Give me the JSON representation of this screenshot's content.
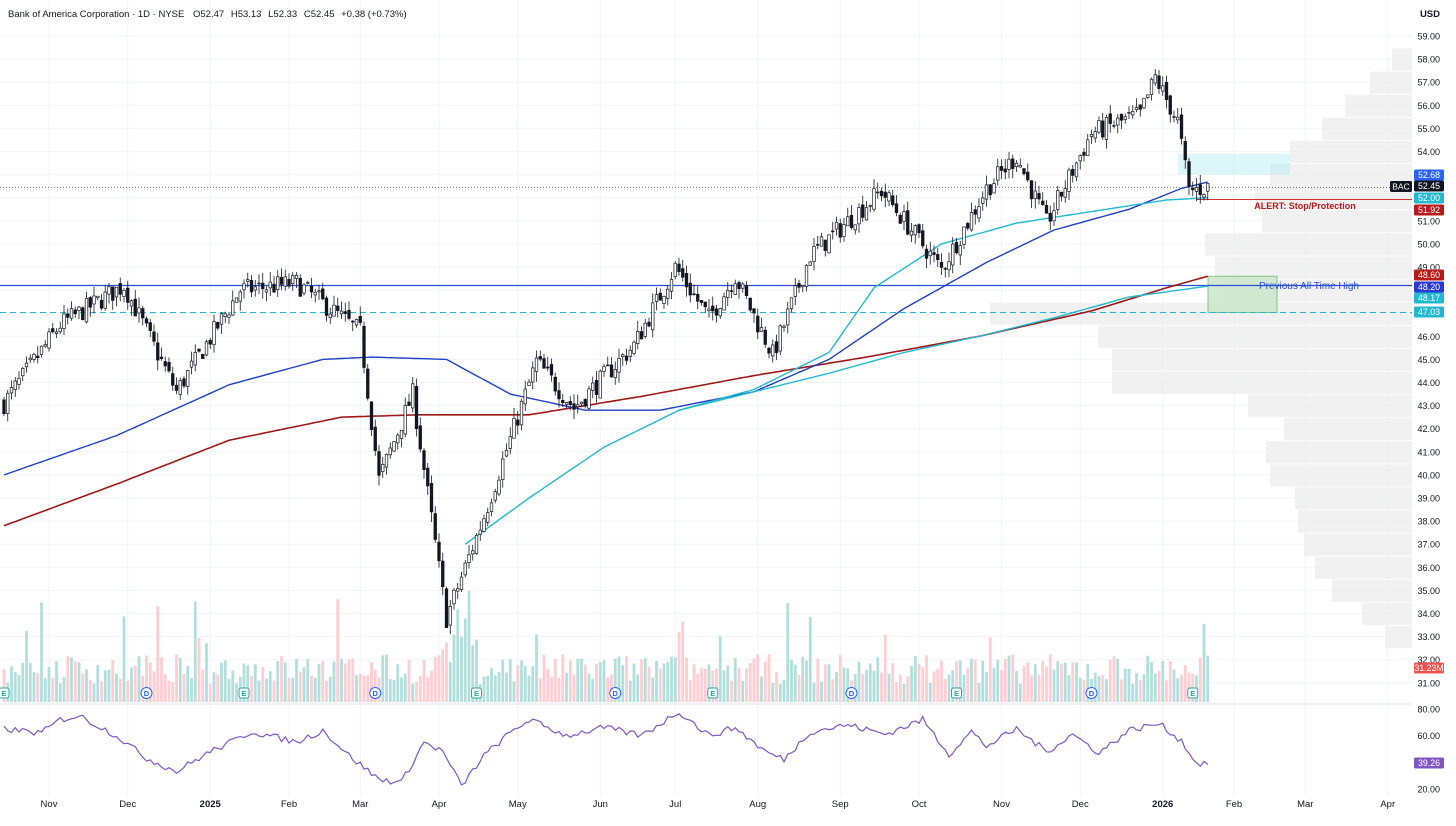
{
  "header": {
    "instrument": "Bank of America Corporation · 1D · NYSE",
    "open_label": "O",
    "open": "52.47",
    "high_label": "H",
    "high": "53.13",
    "low_label": "L",
    "low": "52.33",
    "close_label": "C",
    "close": "52.45",
    "change": "+0.38 (+0.73%)"
  },
  "axis": {
    "currency": "USD"
  },
  "symbol": "BAC",
  "colors": {
    "up": "#26a69a",
    "down": "#ef5350",
    "candle": "#131722",
    "sma50": "#1e40c8",
    "sma100": "#22b8cf",
    "sma200": "#a01818",
    "rsi": "#7e57c2",
    "ath": "#2a4fd6",
    "alert": "#d32f2f"
  },
  "price_scale": {
    "ticks": [
      "59.00",
      "58.00",
      "57.00",
      "56.00",
      "55.00",
      "54.00",
      "53.00",
      "52.00",
      "51.00",
      "50.00",
      "49.00",
      "48.00",
      "47.00",
      "46.00",
      "45.00",
      "44.00",
      "43.00",
      "42.00",
      "41.00",
      "40.00",
      "39.00",
      "38.00",
      "37.00",
      "36.00",
      "35.00",
      "34.00",
      "33.00",
      "32.00",
      "31.00"
    ],
    "badges": [
      {
        "label": "52.68",
        "value": 52.68,
        "color": "#2962ff"
      },
      {
        "label": "52.45",
        "value": 52.45,
        "color": "#131722"
      },
      {
        "label": "52.00",
        "value": 52.0,
        "color": "#22b8cf"
      },
      {
        "label": "51.92",
        "value": 51.92,
        "color": "#b71c1c"
      },
      {
        "label": "48.60",
        "value": 48.6,
        "color": "#b71c1c"
      },
      {
        "label": "48.20",
        "value": 48.2,
        "color": "#2a3ad6"
      },
      {
        "label": "48.17",
        "value": 48.17,
        "color": "#22b8cf"
      },
      {
        "label": "47.03",
        "value": 47.03,
        "color": "#22b8cf"
      }
    ],
    "volume_badge": "31.23M"
  },
  "rsi_scale": {
    "ticks": [
      "80.00",
      "60.00",
      "40.00",
      "20.00"
    ],
    "badge": "39.26"
  },
  "time_axis": {
    "labels": [
      {
        "t": "Nov",
        "i": 12
      },
      {
        "t": "Dec",
        "i": 33
      },
      {
        "t": "2025",
        "i": 55,
        "bold": true
      },
      {
        "t": "Feb",
        "i": 76
      },
      {
        "t": "Mar",
        "i": 95
      },
      {
        "t": "Apr",
        "i": 116
      },
      {
        "t": "May",
        "i": 137
      },
      {
        "t": "Jun",
        "i": 159
      },
      {
        "t": "Jul",
        "i": 179
      },
      {
        "t": "Aug",
        "i": 201
      },
      {
        "t": "Sep",
        "i": 223
      },
      {
        "t": "Oct",
        "i": 244
      },
      {
        "t": "Nov",
        "i": 266
      },
      {
        "t": "Dec",
        "i": 287
      },
      {
        "t": "2026",
        "i": 309,
        "bold": true
      },
      {
        "t": "Feb",
        "i": 328
      },
      {
        "t": "Mar",
        "i": 347
      },
      {
        "t": "Apr",
        "i": 369
      }
    ]
  },
  "event_markers": [
    {
      "t": "E",
      "i": 0
    },
    {
      "t": "D",
      "i": 38
    },
    {
      "t": "E",
      "i": 64
    },
    {
      "t": "D",
      "i": 99
    },
    {
      "t": "E",
      "i": 126
    },
    {
      "t": "D",
      "i": 163
    },
    {
      "t": "E",
      "i": 189
    },
    {
      "t": "D",
      "i": 226
    },
    {
      "t": "E",
      "i": 254
    },
    {
      "t": "D",
      "i": 290
    },
    {
      "t": "E",
      "i": 317
    }
  ],
  "annotations": {
    "ath_label": "Previous All Time High",
    "alert_label": "ALERT: Stop/Protection"
  },
  "chart_data": {
    "type": "candlestick",
    "period": "1D",
    "x_range": [
      "Oct 2024",
      "Apr 2026"
    ],
    "y_range": [
      31,
      59.5
    ],
    "rsi_range": [
      20,
      80
    ],
    "key_points": [
      {
        "i": 0,
        "close": 43.1
      },
      {
        "i": 15,
        "close": 46.5
      },
      {
        "i": 32,
        "close": 48.2
      },
      {
        "i": 46,
        "close": 43.6
      },
      {
        "i": 63,
        "close": 48.0
      },
      {
        "i": 78,
        "close": 48.3
      },
      {
        "i": 95,
        "close": 46.2
      },
      {
        "i": 100,
        "close": 39.8
      },
      {
        "i": 109,
        "close": 43.5
      },
      {
        "i": 118,
        "close": 33.8
      },
      {
        "i": 128,
        "close": 38.2
      },
      {
        "i": 142,
        "close": 44.9
      },
      {
        "i": 152,
        "close": 42.9
      },
      {
        "i": 168,
        "close": 45.6
      },
      {
        "i": 179,
        "close": 49.0
      },
      {
        "i": 188,
        "close": 46.8
      },
      {
        "i": 195,
        "close": 48.6
      },
      {
        "i": 205,
        "close": 45.2
      },
      {
        "i": 215,
        "close": 49.5
      },
      {
        "i": 234,
        "close": 52.3
      },
      {
        "i": 250,
        "close": 48.9
      },
      {
        "i": 262,
        "close": 52.4
      },
      {
        "i": 270,
        "close": 53.8
      },
      {
        "i": 278,
        "close": 50.9
      },
      {
        "i": 290,
        "close": 54.8
      },
      {
        "i": 303,
        "close": 55.6
      },
      {
        "i": 307,
        "close": 57.2
      },
      {
        "i": 313,
        "close": 55.3
      },
      {
        "i": 316,
        "close": 52.3
      },
      {
        "i": 321,
        "close": 52.45
      }
    ],
    "sma_50": [
      {
        "i": 0,
        "v": 40.0
      },
      {
        "i": 30,
        "v": 41.7
      },
      {
        "i": 60,
        "v": 43.9
      },
      {
        "i": 85,
        "v": 45.0
      },
      {
        "i": 98,
        "v": 45.1
      },
      {
        "i": 118,
        "v": 45.0
      },
      {
        "i": 135,
        "v": 43.5
      },
      {
        "i": 155,
        "v": 42.8
      },
      {
        "i": 175,
        "v": 42.8
      },
      {
        "i": 200,
        "v": 43.6
      },
      {
        "i": 220,
        "v": 45.0
      },
      {
        "i": 240,
        "v": 47.2
      },
      {
        "i": 262,
        "v": 49.2
      },
      {
        "i": 280,
        "v": 50.6
      },
      {
        "i": 300,
        "v": 51.5
      },
      {
        "i": 314,
        "v": 52.4
      },
      {
        "i": 321,
        "v": 52.68
      }
    ],
    "sma_100": [
      {
        "i": 123,
        "v": 37.0
      },
      {
        "i": 140,
        "v": 39.0
      },
      {
        "i": 160,
        "v": 41.2
      },
      {
        "i": 180,
        "v": 42.8
      },
      {
        "i": 200,
        "v": 43.7
      },
      {
        "i": 220,
        "v": 45.3
      },
      {
        "i": 232,
        "v": 48.1
      },
      {
        "i": 250,
        "v": 50.0
      },
      {
        "i": 270,
        "v": 50.9
      },
      {
        "i": 290,
        "v": 51.4
      },
      {
        "i": 310,
        "v": 51.9
      },
      {
        "i": 321,
        "v": 52.0
      }
    ],
    "sma_100_lower": [
      {
        "i": 180,
        "v": 42.8
      },
      {
        "i": 200,
        "v": 43.6
      },
      {
        "i": 220,
        "v": 44.4
      },
      {
        "i": 240,
        "v": 45.3
      },
      {
        "i": 260,
        "v": 46.0
      },
      {
        "i": 280,
        "v": 46.8
      },
      {
        "i": 300,
        "v": 47.7
      },
      {
        "i": 321,
        "v": 48.17
      }
    ],
    "sma_200": [
      {
        "i": 0,
        "v": 37.8
      },
      {
        "i": 30,
        "v": 39.6
      },
      {
        "i": 60,
        "v": 41.5
      },
      {
        "i": 90,
        "v": 42.5
      },
      {
        "i": 110,
        "v": 42.6
      },
      {
        "i": 140,
        "v": 42.6
      },
      {
        "i": 170,
        "v": 43.4
      },
      {
        "i": 200,
        "v": 44.3
      },
      {
        "i": 230,
        "v": 45.1
      },
      {
        "i": 260,
        "v": 46.0
      },
      {
        "i": 290,
        "v": 47.1
      },
      {
        "i": 310,
        "v": 48.1
      },
      {
        "i": 321,
        "v": 48.6
      }
    ],
    "levels": [
      {
        "name": "Previous All Time High",
        "value": 48.2
      },
      {
        "name": "dashed support",
        "value": 47.03
      },
      {
        "name": "ALERT: Stop/Protection",
        "value": 51.92
      },
      {
        "name": "last close",
        "value": 52.45
      }
    ],
    "zones": [
      {
        "from_i": 321,
        "to_i": 343,
        "low": 47.03,
        "high": 48.6,
        "color": "green"
      },
      {
        "from_i": 313,
        "to_i": 343,
        "low": 53.0,
        "high": 53.9,
        "color": "cyan"
      }
    ],
    "rsi_points": [
      {
        "i": 0,
        "v": 65
      },
      {
        "i": 10,
        "v": 62
      },
      {
        "i": 15,
        "v": 72
      },
      {
        "i": 20,
        "v": 75
      },
      {
        "i": 30,
        "v": 60
      },
      {
        "i": 38,
        "v": 43
      },
      {
        "i": 46,
        "v": 33
      },
      {
        "i": 55,
        "v": 48
      },
      {
        "i": 62,
        "v": 57
      },
      {
        "i": 66,
        "v": 63
      },
      {
        "i": 78,
        "v": 55
      },
      {
        "i": 85,
        "v": 64
      },
      {
        "i": 92,
        "v": 45
      },
      {
        "i": 100,
        "v": 27
      },
      {
        "i": 106,
        "v": 25
      },
      {
        "i": 112,
        "v": 55
      },
      {
        "i": 117,
        "v": 48
      },
      {
        "i": 122,
        "v": 22
      },
      {
        "i": 128,
        "v": 45
      },
      {
        "i": 135,
        "v": 62
      },
      {
        "i": 140,
        "v": 72
      },
      {
        "i": 150,
        "v": 60
      },
      {
        "i": 160,
        "v": 66
      },
      {
        "i": 170,
        "v": 60
      },
      {
        "i": 180,
        "v": 78
      },
      {
        "i": 188,
        "v": 60
      },
      {
        "i": 195,
        "v": 66
      },
      {
        "i": 203,
        "v": 48
      },
      {
        "i": 208,
        "v": 42
      },
      {
        "i": 215,
        "v": 63
      },
      {
        "i": 225,
        "v": 68
      },
      {
        "i": 235,
        "v": 61
      },
      {
        "i": 245,
        "v": 72
      },
      {
        "i": 252,
        "v": 46
      },
      {
        "i": 258,
        "v": 63
      },
      {
        "i": 262,
        "v": 52
      },
      {
        "i": 270,
        "v": 65
      },
      {
        "i": 278,
        "v": 48
      },
      {
        "i": 285,
        "v": 61
      },
      {
        "i": 292,
        "v": 47
      },
      {
        "i": 300,
        "v": 64
      },
      {
        "i": 308,
        "v": 69
      },
      {
        "i": 314,
        "v": 56
      },
      {
        "i": 318,
        "v": 39
      },
      {
        "i": 321,
        "v": 39.26
      }
    ],
    "volume_profile": "horizontal volume-by-price histogram on right edge",
    "legend": "none",
    "grid": true
  }
}
